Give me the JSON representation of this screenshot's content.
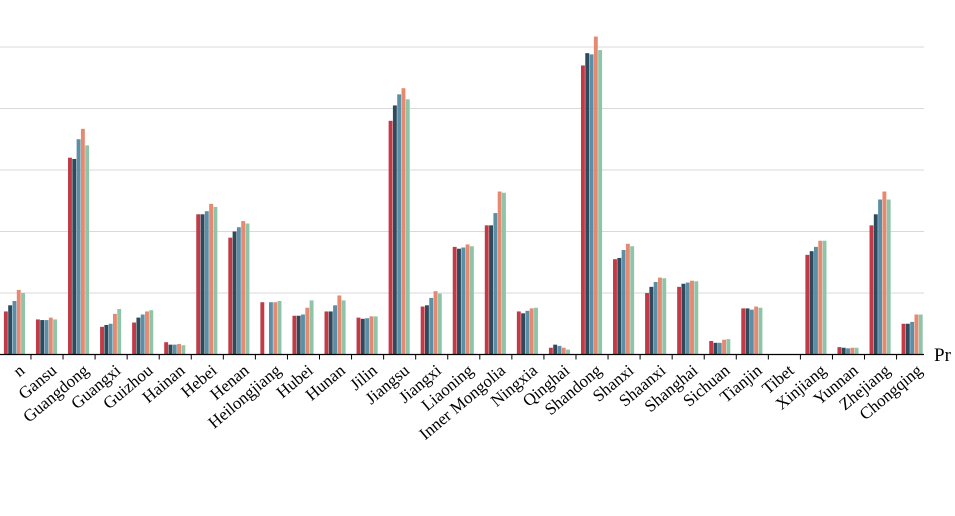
{
  "chart_data": {
    "type": "bar",
    "xlabel": "Pr",
    "grid": "horizontal",
    "series_colors": [
      "#c23a45",
      "#2e4a5c",
      "#5b8fa8",
      "#e58a70",
      "#8fc4a8"
    ],
    "categories": [
      "n",
      "Gansu",
      "Guangdong",
      "Guangxi",
      "Guizhou",
      "Hainan",
      "Hebei",
      "Henan",
      "Heilongjiang",
      "Hubei",
      "Hunan",
      "Jilin",
      "Jiangsu",
      "Jiangxi",
      "Liaoning",
      "Inner Mongolia",
      "Ningxia",
      "Qinghai",
      "Shandong",
      "Shanxi",
      "Shaanxi",
      "Shanghai",
      "Sichuan",
      "Tianjin",
      "Tibet",
      "Xinjiang",
      "Yunnan",
      "Zhejiang",
      "Chongqing"
    ],
    "series": [
      {
        "values": [
          0.7,
          0.57,
          3.2,
          0.45,
          0.52,
          0.2,
          2.28,
          1.9,
          0.85,
          0.63,
          0.7,
          0.6,
          3.8,
          0.78,
          1.75,
          2.1,
          0.7,
          0.11,
          4.7,
          1.55,
          1.0,
          1.1,
          0.22,
          0.75,
          0.0,
          1.62,
          0.12,
          2.1,
          0.5
        ]
      },
      {
        "values": [
          0.8,
          0.56,
          3.18,
          0.48,
          0.6,
          0.16,
          2.28,
          2.0,
          0.0,
          0.63,
          0.7,
          0.58,
          4.05,
          0.8,
          1.72,
          2.1,
          0.67,
          0.16,
          4.9,
          1.57,
          1.1,
          1.15,
          0.19,
          0.75,
          0.0,
          1.68,
          0.11,
          2.28,
          0.5
        ]
      },
      {
        "values": [
          0.87,
          0.56,
          3.5,
          0.5,
          0.65,
          0.16,
          2.33,
          2.07,
          0.85,
          0.65,
          0.8,
          0.59,
          4.23,
          0.92,
          1.74,
          2.3,
          0.71,
          0.14,
          4.88,
          1.7,
          1.18,
          1.17,
          0.19,
          0.73,
          0.0,
          1.75,
          0.1,
          2.52,
          0.53
        ]
      },
      {
        "values": [
          1.05,
          0.6,
          3.67,
          0.66,
          0.7,
          0.17,
          2.45,
          2.17,
          0.85,
          0.76,
          0.96,
          0.62,
          4.33,
          1.03,
          1.79,
          2.65,
          0.75,
          0.11,
          5.17,
          1.8,
          1.25,
          1.2,
          0.24,
          0.78,
          0.0,
          1.85,
          0.11,
          2.65,
          0.65
        ]
      },
      {
        "values": [
          1.0,
          0.57,
          3.4,
          0.74,
          0.72,
          0.15,
          2.4,
          2.13,
          0.87,
          0.88,
          0.88,
          0.62,
          4.15,
          0.99,
          1.76,
          2.63,
          0.76,
          0.08,
          4.95,
          1.76,
          1.24,
          1.19,
          0.25,
          0.76,
          0.0,
          1.85,
          0.11,
          2.52,
          0.65
        ]
      }
    ],
    "ylim": [
      0,
      5.5
    ]
  }
}
